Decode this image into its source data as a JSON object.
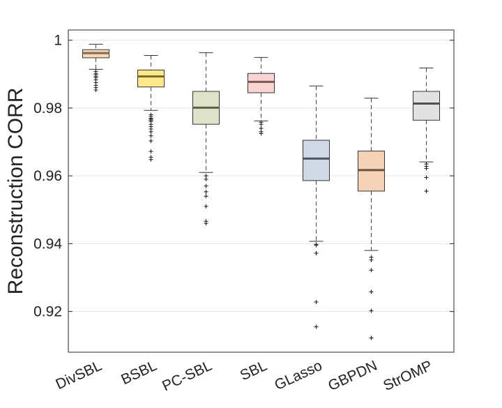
{
  "chart_data": {
    "type": "boxplot",
    "title": "",
    "xlabel": "",
    "ylabel": "Reconstruction CORR",
    "ylim": [
      0.908,
      1.003
    ],
    "yticks": [
      0.92,
      0.94,
      0.96,
      0.98,
      1
    ],
    "ytick_labels": [
      "0.92",
      "0.94",
      "0.96",
      "0.98",
      "1"
    ],
    "grid": "horizontal",
    "categories": [
      "DivSBL",
      "BSBL",
      "PC-SBL",
      "SBL",
      "GLasso",
      "GBPDN",
      "StrOMP"
    ],
    "boxes": [
      {
        "name": "DivSBL",
        "color": "#f6d9b8",
        "median_color": "#8a6a50",
        "whisker_low": 0.9914,
        "q1": 0.9948,
        "median": 0.9962,
        "q3": 0.9972,
        "whisker_high": 0.9988,
        "outliers": [
          0.9908,
          0.9902,
          0.9898,
          0.9893,
          0.9889,
          0.9883,
          0.9875,
          0.9867,
          0.986,
          0.9853
        ]
      },
      {
        "name": "BSBL",
        "color": "#fce98b",
        "median_color": "#7a6a20",
        "whisker_low": 0.9793,
        "q1": 0.9862,
        "median": 0.9893,
        "q3": 0.9912,
        "whisker_high": 0.9955,
        "outliers": [
          0.978,
          0.9775,
          0.977,
          0.9767,
          0.9764,
          0.976,
          0.9752,
          0.9745,
          0.9738,
          0.973,
          0.9718,
          0.9703,
          0.9672,
          0.9655,
          0.9648
        ]
      },
      {
        "name": "PC-SBL",
        "color": "#dee3c8",
        "median_color": "#5e604a",
        "whisker_low": 0.961,
        "q1": 0.9752,
        "median": 0.9801,
        "q3": 0.9849,
        "whisker_high": 0.9963,
        "outliers": [
          0.96,
          0.959,
          0.957,
          0.9553,
          0.954,
          0.951,
          0.9466,
          0.946
        ]
      },
      {
        "name": "SBL",
        "color": "#f8d4d2",
        "median_color": "#7a5a58",
        "whisker_low": 0.9762,
        "q1": 0.9845,
        "median": 0.9877,
        "q3": 0.9902,
        "whisker_high": 0.9949,
        "outliers": [
          0.9758,
          0.9752,
          0.974,
          0.973,
          0.9725
        ]
      },
      {
        "name": "GLasso",
        "color": "#cfd8e5",
        "median_color": "#4a5666",
        "whisker_low": 0.9407,
        "q1": 0.9586,
        "median": 0.9651,
        "q3": 0.9705,
        "whisker_high": 0.9865,
        "outliers": [
          0.9398,
          0.9395,
          0.9372,
          0.9228,
          0.9155
        ]
      },
      {
        "name": "GBPDN",
        "color": "#f4d2b4",
        "median_color": "#6a5040",
        "whisker_low": 0.938,
        "q1": 0.9555,
        "median": 0.9617,
        "q3": 0.9673,
        "whisker_high": 0.9829,
        "outliers": [
          0.936,
          0.9352,
          0.9322,
          0.9258,
          0.9202,
          0.9122
        ]
      },
      {
        "name": "StrOMP",
        "color": "#e2e2e2",
        "median_color": "#505050",
        "whisker_low": 0.9641,
        "q1": 0.9764,
        "median": 0.9813,
        "q3": 0.9849,
        "whisker_high": 0.9918,
        "outliers": [
          0.9635,
          0.9628,
          0.9622,
          0.9595,
          0.9555
        ]
      }
    ]
  }
}
